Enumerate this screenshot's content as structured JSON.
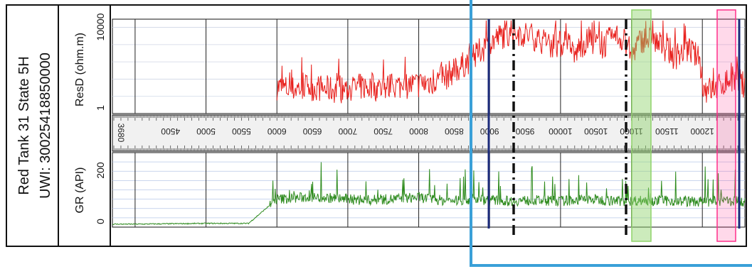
{
  "well": {
    "name": "Red Tank 31 State 5H",
    "uwi": "UWI: 30025418850000"
  },
  "chart_data": [
    {
      "type": "line",
      "track": "resistivity",
      "ylabel": "ResD (ohm.m)",
      "yscale": "log",
      "ylim": [
        0.1,
        30000
      ],
      "ytick_labels": [
        "10000",
        "1"
      ],
      "ytick_values": [
        10000,
        1
      ],
      "xlim": [
        3680,
        12600
      ],
      "color": "#e8201c",
      "x": [
        6000,
        6200,
        6400,
        6600,
        6800,
        7000,
        7200,
        7400,
        7600,
        7800,
        8000,
        8200,
        8400,
        8600,
        8800,
        9000,
        9200,
        9400,
        9600,
        9800,
        10000,
        10200,
        10400,
        10600,
        10800,
        11000,
        11200,
        11400,
        11600,
        11800,
        12000,
        12200,
        12400,
        12600
      ],
      "y": [
        3,
        2,
        3,
        2.5,
        2,
        2,
        3,
        2.5,
        3,
        3.5,
        4,
        6,
        12,
        40,
        150,
        800,
        3000,
        4000,
        2500,
        800,
        900,
        120,
        1500,
        600,
        2500,
        30,
        2000,
        800,
        150,
        400,
        2,
        2,
        8,
        4
      ]
    },
    {
      "type": "line",
      "track": "gamma-ray",
      "ylabel": "GR (API)",
      "ylim": [
        0,
        200
      ],
      "ytick_labels": [
        "200",
        "0"
      ],
      "ytick_values": [
        200,
        0
      ],
      "xlim": [
        3680,
        12600
      ],
      "color": "#2e8b1e",
      "x": [
        3680,
        4000,
        4500,
        5000,
        5600,
        6000,
        6400,
        6800,
        7200,
        7600,
        8000,
        8400,
        8800,
        9200,
        9600,
        10000,
        10400,
        10800,
        11200,
        11600,
        12000,
        12400,
        12600
      ],
      "y": [
        8,
        8,
        9,
        10,
        10,
        75,
        80,
        78,
        72,
        75,
        80,
        70,
        75,
        70,
        72,
        70,
        75,
        70,
        72,
        70,
        68,
        70,
        68
      ]
    }
  ],
  "depth_track": {
    "start_label": "3680",
    "tick_labels": [
      "4500",
      "5000",
      "5500",
      "6000",
      "6500",
      "7000",
      "7500",
      "8000",
      "8500",
      "9000",
      "9500",
      "10000",
      "10500",
      "11000",
      "11500",
      "12000"
    ]
  },
  "markers": {
    "top_line_color": "#1b2a7a",
    "dash_line_color": "#111111",
    "green_band_color": "#8fd36a",
    "pink_band_color": "#ff2f8a",
    "highlight_frame_color": "#3aa0d8"
  }
}
